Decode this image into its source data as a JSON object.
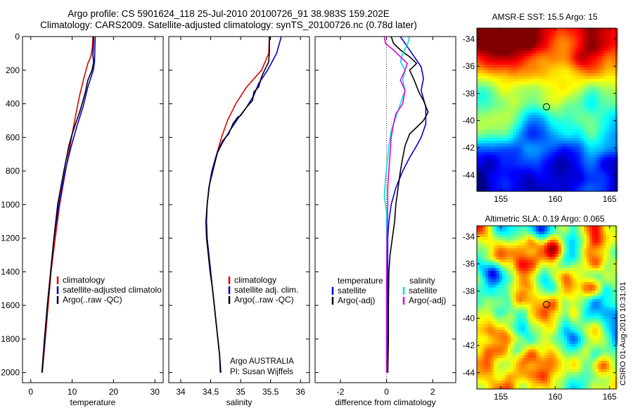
{
  "header": {
    "line1": "Argo profile: CS 5901624_118 25-Jul-2010 20100726_91 38.983S 159.202E",
    "line2": "Climatology: CARS2009. Satellite-adjusted climatology: synTS_20100726.nc (0.78d later)"
  },
  "footer_vertical": "CSIRO 01-Aug-2010 10:31:01",
  "colors": {
    "climatology": "#e00000",
    "satellite": "#0000dd",
    "argo": "#000000",
    "temp_diff": "#00e0e0",
    "sal_diff": "#e000e0"
  },
  "chart_data": [
    {
      "type": "line",
      "xlabel": "temperature",
      "ylabel": "",
      "xlim": [
        -2,
        32
      ],
      "ylim": [
        2060,
        0
      ],
      "xticks": [
        0,
        10,
        20,
        30
      ],
      "yticks": [
        0,
        200,
        400,
        600,
        800,
        1000,
        1200,
        1400,
        1600,
        1800,
        2000
      ],
      "legend": {
        "placement": "lower-left",
        "entries": [
          "climatology",
          "satellite-adjusted climatology",
          "Argo(..raw -QC)"
        ]
      },
      "series": [
        {
          "name": "climatology",
          "color": "#e00000",
          "points": [
            [
              15.0,
              0
            ],
            [
              14.9,
              60
            ],
            [
              14.5,
              120
            ],
            [
              13.8,
              160
            ],
            [
              12.8,
              250
            ],
            [
              11.8,
              350
            ],
            [
              10.6,
              500
            ],
            [
              9.5,
              650
            ],
            [
              8.4,
              800
            ],
            [
              7.0,
              1000
            ],
            [
              5.9,
              1200
            ],
            [
              4.9,
              1400
            ],
            [
              4.2,
              1600
            ],
            [
              3.5,
              1800
            ],
            [
              2.8,
              2000
            ]
          ]
        },
        {
          "name": "satellite-adjusted climatology",
          "color": "#0000dd",
          "points": [
            [
              15.6,
              0
            ],
            [
              15.5,
              60
            ],
            [
              15.4,
              150
            ],
            [
              15.1,
              200
            ],
            [
              13.8,
              300
            ],
            [
              12.6,
              420
            ],
            [
              11.2,
              530
            ],
            [
              9.7,
              660
            ],
            [
              8.3,
              800
            ],
            [
              6.8,
              1000
            ],
            [
              5.6,
              1200
            ],
            [
              4.8,
              1400
            ],
            [
              4.0,
              1600
            ],
            [
              3.4,
              1800
            ],
            [
              2.7,
              2000
            ]
          ]
        },
        {
          "name": "Argo(..raw -QC)",
          "color": "#000000",
          "points": [
            [
              15.2,
              0
            ],
            [
              15.1,
              60
            ],
            [
              15.0,
              110
            ],
            [
              15.2,
              150
            ],
            [
              14.8,
              200
            ],
            [
              13.8,
              260
            ],
            [
              13.2,
              330
            ],
            [
              12.4,
              400
            ],
            [
              11.8,
              450
            ],
            [
              10.8,
              520
            ],
            [
              10.0,
              580
            ],
            [
              9.2,
              650
            ],
            [
              8.0,
              800
            ],
            [
              6.5,
              1000
            ],
            [
              5.6,
              1200
            ],
            [
              4.8,
              1400
            ],
            [
              4.0,
              1600
            ],
            [
              3.3,
              1800
            ],
            [
              2.7,
              2000
            ]
          ]
        }
      ]
    },
    {
      "type": "line",
      "xlabel": "salinity",
      "ylabel": "",
      "xlim": [
        33.8,
        36.15
      ],
      "ylim": [
        2060,
        0
      ],
      "xticks": [
        34,
        34.5,
        35,
        35.5,
        36
      ],
      "xtick_labels": [
        "34",
        "34.5",
        "35",
        "35.5",
        "36"
      ],
      "legend": {
        "placement": "lower-left",
        "entries": [
          "climatology",
          "satellite adj. clim.",
          "Argo(..raw -QC)"
        ]
      },
      "annotation": [
        "Argo AUSTRALIA",
        "PI: Susan Wijffels"
      ],
      "series": [
        {
          "name": "climatology",
          "color": "#e00000",
          "points": [
            [
              35.48,
              0
            ],
            [
              35.47,
              100
            ],
            [
              35.35,
              200
            ],
            [
              35.1,
              300
            ],
            [
              34.92,
              400
            ],
            [
              34.78,
              500
            ],
            [
              34.68,
              600
            ],
            [
              34.6,
              700
            ],
            [
              34.52,
              800
            ],
            [
              34.47,
              900
            ],
            [
              34.44,
              1000
            ],
            [
              34.43,
              1100
            ],
            [
              34.44,
              1200
            ],
            [
              34.47,
              1300
            ],
            [
              34.5,
              1400
            ],
            [
              34.53,
              1500
            ],
            [
              34.56,
              1600
            ],
            [
              34.59,
              1700
            ],
            [
              34.62,
              1800
            ],
            [
              34.65,
              1900
            ],
            [
              34.67,
              2000
            ]
          ]
        },
        {
          "name": "satellite adj. clim.",
          "color": "#0000dd",
          "points": [
            [
              35.68,
              0
            ],
            [
              35.6,
              100
            ],
            [
              35.45,
              200
            ],
            [
              35.3,
              280
            ],
            [
              35.22,
              350
            ],
            [
              35.1,
              420
            ],
            [
              34.95,
              490
            ],
            [
              34.82,
              560
            ],
            [
              34.7,
              630
            ],
            [
              34.6,
              700
            ],
            [
              34.52,
              800
            ],
            [
              34.47,
              900
            ],
            [
              34.44,
              1000
            ],
            [
              34.43,
              1100
            ],
            [
              34.44,
              1200
            ],
            [
              34.47,
              1300
            ],
            [
              34.5,
              1400
            ],
            [
              34.53,
              1500
            ],
            [
              34.56,
              1600
            ],
            [
              34.59,
              1700
            ],
            [
              34.62,
              1800
            ],
            [
              34.65,
              1900
            ],
            [
              34.67,
              2000
            ]
          ]
        },
        {
          "name": "Argo(..raw -QC)",
          "color": "#000000",
          "points": [
            [
              35.48,
              0
            ],
            [
              35.48,
              90
            ],
            [
              35.47,
              150
            ],
            [
              35.4,
              200
            ],
            [
              35.35,
              240
            ],
            [
              35.3,
              300
            ],
            [
              35.22,
              330
            ],
            [
              35.2,
              380
            ],
            [
              35.1,
              420
            ],
            [
              35.0,
              470
            ],
            [
              34.95,
              480
            ],
            [
              34.87,
              520
            ],
            [
              34.8,
              580
            ],
            [
              34.7,
              620
            ],
            [
              34.62,
              680
            ],
            [
              34.55,
              780
            ],
            [
              34.48,
              880
            ],
            [
              34.44,
              1000
            ],
            [
              34.42,
              1100
            ],
            [
              34.43,
              1200
            ],
            [
              34.46,
              1300
            ],
            [
              34.49,
              1400
            ],
            [
              34.53,
              1500
            ],
            [
              34.56,
              1600
            ],
            [
              34.59,
              1700
            ],
            [
              34.62,
              1800
            ],
            [
              34.65,
              1900
            ],
            [
              34.66,
              2000
            ]
          ]
        }
      ]
    },
    {
      "type": "line",
      "xlabel": "difference from climatology",
      "ylabel": "",
      "xlim": [
        -3.1,
        3.0
      ],
      "ylim": [
        2060,
        0
      ],
      "xticks": [
        -2,
        0,
        2
      ],
      "zero_line": "dotted",
      "legend": {
        "placement": "lower-center",
        "headers": [
          "temperature",
          "salinity"
        ],
        "entries": [
          "satellite",
          "Argo(-adj)",
          "satellite",
          "Argo(-adj)"
        ]
      },
      "series": [
        {
          "name": "temperature satellite",
          "color": "#0000dd",
          "points": [
            [
              0.6,
              0
            ],
            [
              0.9,
              60
            ],
            [
              1.2,
              120
            ],
            [
              1.5,
              180
            ],
            [
              1.6,
              250
            ],
            [
              1.5,
              320
            ],
            [
              1.7,
              420
            ],
            [
              1.7,
              520
            ],
            [
              1.5,
              600
            ],
            [
              1.3,
              650
            ],
            [
              1.0,
              720
            ],
            [
              0.7,
              800
            ],
            [
              0.4,
              900
            ],
            [
              0.2,
              1000
            ],
            [
              0.1,
              1100
            ],
            [
              0.05,
              1200
            ],
            [
              0.05,
              1400
            ],
            [
              0.05,
              1600
            ],
            [
              0.05,
              1800
            ],
            [
              0.05,
              2000
            ]
          ]
        },
        {
          "name": "temperature Argo(-adj)",
          "color": "#000000",
          "points": [
            [
              0.2,
              0
            ],
            [
              0.3,
              40
            ],
            [
              0.6,
              80
            ],
            [
              1.0,
              120
            ],
            [
              1.3,
              160
            ],
            [
              1.0,
              200
            ],
            [
              1.2,
              260
            ],
            [
              1.4,
              330
            ],
            [
              1.6,
              380
            ],
            [
              1.8,
              450
            ],
            [
              1.6,
              500
            ],
            [
              1.3,
              540
            ],
            [
              1.0,
              580
            ],
            [
              0.8,
              650
            ],
            [
              0.7,
              720
            ],
            [
              0.6,
              800
            ],
            [
              0.5,
              900
            ],
            [
              0.4,
              1000
            ],
            [
              0.35,
              1100
            ],
            [
              0.25,
              1200
            ],
            [
              0.15,
              1300
            ],
            [
              0.1,
              1400
            ],
            [
              0.08,
              1600
            ],
            [
              0.08,
              1800
            ],
            [
              0.05,
              2000
            ]
          ]
        },
        {
          "name": "salinity satellite",
          "color": "#00e0e0",
          "points": [
            [
              1.0,
              0
            ],
            [
              0.9,
              50
            ],
            [
              0.7,
              100
            ],
            [
              0.6,
              150
            ],
            [
              0.8,
              200
            ],
            [
              0.7,
              260
            ],
            [
              0.8,
              320
            ],
            [
              0.6,
              400
            ],
            [
              0.4,
              480
            ],
            [
              0.2,
              560
            ],
            [
              0.1,
              650
            ],
            [
              0.05,
              720
            ],
            [
              -0.05,
              850
            ],
            [
              -0.1,
              950
            ],
            [
              0.0,
              1050
            ],
            [
              0.0,
              1200
            ],
            [
              0.0,
              1500
            ],
            [
              0.0,
              2000
            ]
          ]
        },
        {
          "name": "salinity Argo(-adj)",
          "color": "#e000e0",
          "points": [
            [
              -0.1,
              0
            ],
            [
              -0.05,
              40
            ],
            [
              0.3,
              80
            ],
            [
              0.6,
              120
            ],
            [
              0.9,
              160
            ],
            [
              0.8,
              200
            ],
            [
              0.6,
              260
            ],
            [
              0.8,
              320
            ],
            [
              0.7,
              400
            ],
            [
              0.4,
              460
            ],
            [
              0.3,
              520
            ],
            [
              0.2,
              600
            ],
            [
              0.15,
              700
            ],
            [
              0.1,
              800
            ],
            [
              0.05,
              900
            ],
            [
              0.05,
              1000
            ],
            [
              0.02,
              1200
            ],
            [
              0.0,
              1500
            ],
            [
              0.0,
              2000
            ]
          ]
        }
      ]
    },
    {
      "type": "heatmap",
      "title": "AMSR-E SST: 15.5 Argo: 15",
      "xlim": [
        152.8,
        165.6
      ],
      "ylim": [
        -45.2,
        -33.2
      ],
      "xticks": [
        155,
        160,
        165
      ],
      "yticks": [
        -34,
        -36,
        -38,
        -40,
        -42,
        -44
      ],
      "marker": [
        159.202,
        -38.983
      ]
    },
    {
      "type": "heatmap",
      "title": "Altimetric SLA: 0.19 Argo: 0.065",
      "xlim": [
        152.8,
        165.6
      ],
      "ylim": [
        -45.2,
        -33.2
      ],
      "xticks": [
        155,
        160,
        165
      ],
      "yticks": [
        -34,
        -36,
        -38,
        -40,
        -42,
        -44
      ],
      "marker": [
        159.202,
        -38.983
      ]
    }
  ]
}
